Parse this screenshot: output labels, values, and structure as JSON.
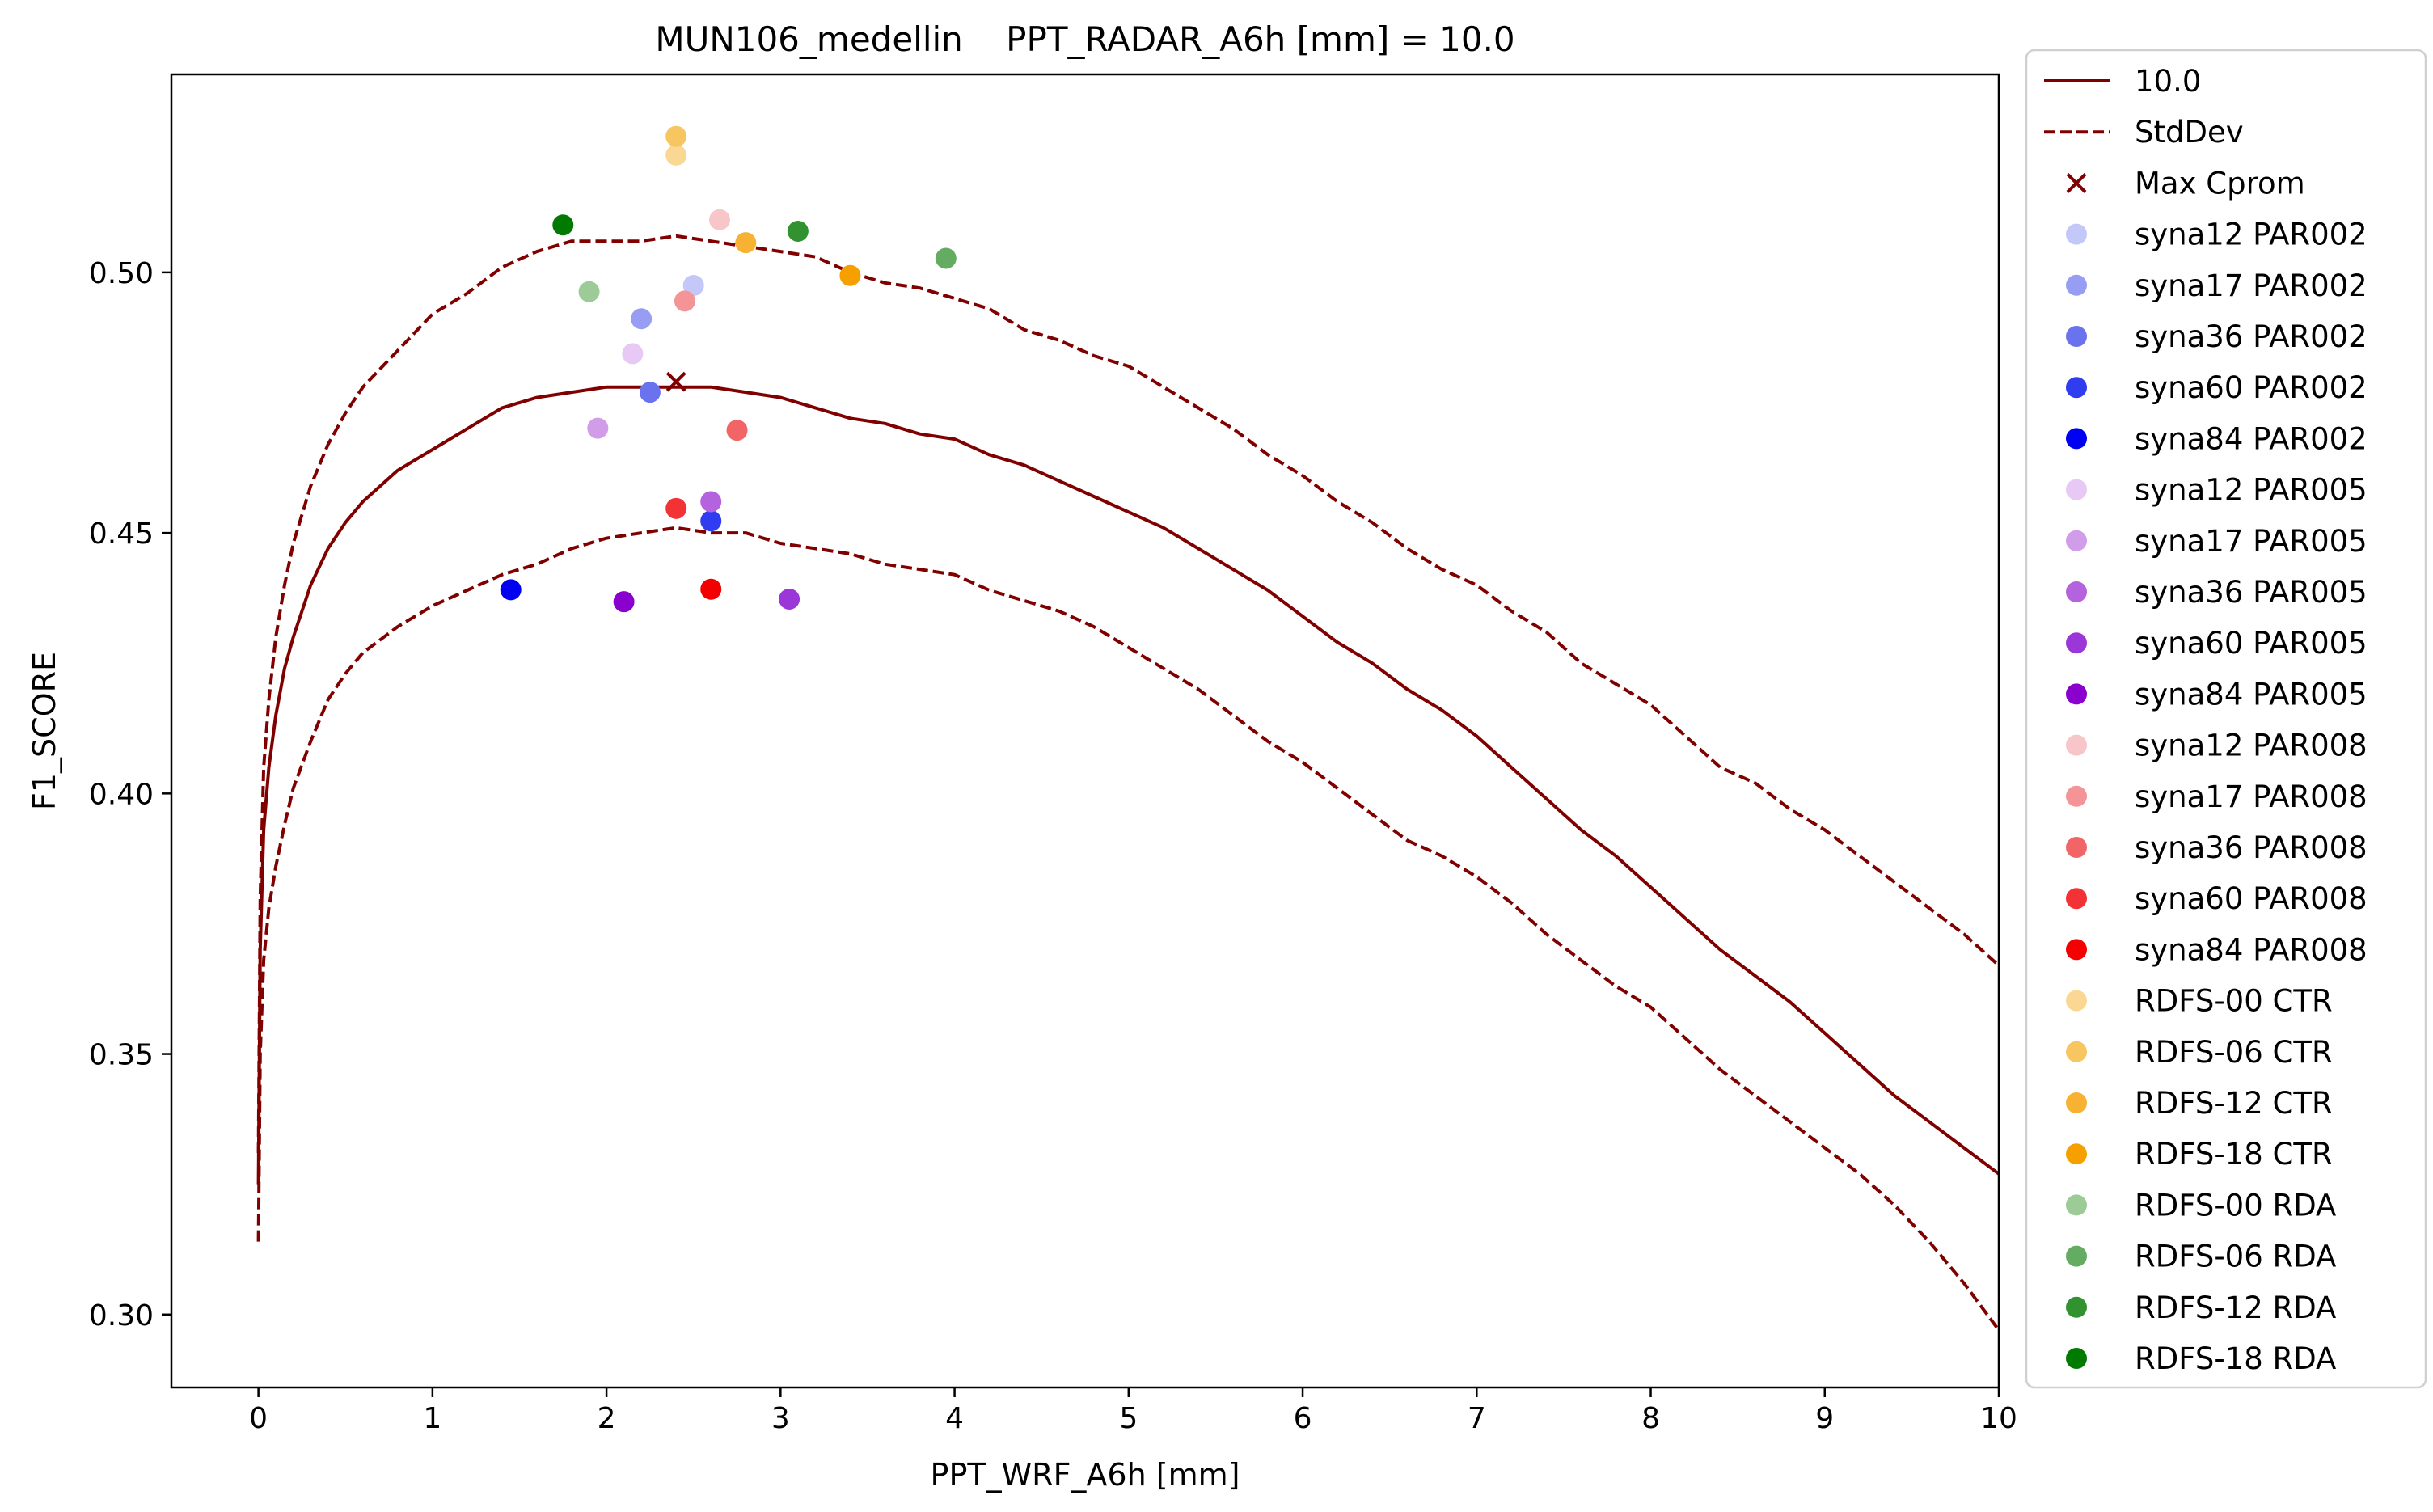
{
  "chart_data": {
    "type": "line",
    "title": "MUN106_medellin    PPT_RADAR_A6h [mm] = 10.0",
    "xlabel": "PPT_WRF_A6h [mm]",
    "ylabel": "F1_SCORE",
    "xlim": [
      -0.5,
      10
    ],
    "ylim": [
      0.286,
      0.538
    ],
    "x_ticks": [
      "0",
      "1",
      "2",
      "3",
      "4",
      "5",
      "6",
      "7",
      "8",
      "9",
      "10"
    ],
    "y_ticks": [
      "0.30",
      "0.35",
      "0.40",
      "0.45",
      "0.50"
    ],
    "legend_position": "outside right",
    "grid": false,
    "lines": {
      "mean": {
        "name": "10.0",
        "color": "#800000",
        "style": "solid",
        "x": [
          0,
          0.01,
          0.03,
          0.06,
          0.1,
          0.15,
          0.2,
          0.3,
          0.4,
          0.5,
          0.6,
          0.8,
          1.0,
          1.2,
          1.4,
          1.6,
          1.8,
          2.0,
          2.2,
          2.4,
          2.6,
          2.8,
          3.0,
          3.2,
          3.4,
          3.6,
          3.8,
          4.0,
          4.2,
          4.4,
          4.6,
          4.8,
          5.0,
          5.2,
          5.4,
          5.6,
          5.8,
          6.0,
          6.2,
          6.4,
          6.6,
          6.8,
          7.0,
          7.2,
          7.4,
          7.6,
          7.8,
          8.0,
          8.2,
          8.4,
          8.6,
          8.8,
          9.0,
          9.2,
          9.4,
          9.6,
          9.8,
          10.0
        ],
        "y": [
          0.325,
          0.37,
          0.393,
          0.405,
          0.415,
          0.424,
          0.43,
          0.44,
          0.447,
          0.452,
          0.456,
          0.462,
          0.466,
          0.47,
          0.474,
          0.476,
          0.477,
          0.478,
          0.478,
          0.478,
          0.478,
          0.477,
          0.476,
          0.474,
          0.472,
          0.471,
          0.469,
          0.468,
          0.465,
          0.463,
          0.46,
          0.457,
          0.454,
          0.451,
          0.447,
          0.443,
          0.439,
          0.434,
          0.429,
          0.425,
          0.42,
          0.416,
          0.411,
          0.405,
          0.399,
          0.393,
          0.388,
          0.382,
          0.376,
          0.37,
          0.365,
          0.36,
          0.354,
          0.348,
          0.342,
          0.337,
          0.332,
          0.327
        ]
      },
      "std_upper": {
        "name": "StdDev",
        "color": "#800000",
        "style": "dashed",
        "x": [
          0,
          0.01,
          0.03,
          0.06,
          0.1,
          0.15,
          0.2,
          0.3,
          0.4,
          0.5,
          0.6,
          0.8,
          1.0,
          1.2,
          1.4,
          1.6,
          1.8,
          2.0,
          2.2,
          2.4,
          2.6,
          2.8,
          3.0,
          3.2,
          3.4,
          3.6,
          3.8,
          4.0,
          4.2,
          4.4,
          4.6,
          4.8,
          5.0,
          5.2,
          5.4,
          5.6,
          5.8,
          6.0,
          6.2,
          6.4,
          6.6,
          6.8,
          7.0,
          7.2,
          7.4,
          7.6,
          7.8,
          8.0,
          8.2,
          8.4,
          8.6,
          8.8,
          9.0,
          9.2,
          9.4,
          9.6,
          9.8,
          10.0
        ],
        "y": [
          0.331,
          0.38,
          0.405,
          0.418,
          0.43,
          0.44,
          0.448,
          0.459,
          0.467,
          0.473,
          0.478,
          0.485,
          0.492,
          0.496,
          0.501,
          0.504,
          0.506,
          0.506,
          0.506,
          0.507,
          0.506,
          0.505,
          0.504,
          0.503,
          0.5,
          0.498,
          0.497,
          0.495,
          0.493,
          0.489,
          0.487,
          0.484,
          0.482,
          0.478,
          0.474,
          0.47,
          0.465,
          0.461,
          0.456,
          0.452,
          0.447,
          0.443,
          0.44,
          0.435,
          0.431,
          0.425,
          0.421,
          0.417,
          0.411,
          0.405,
          0.402,
          0.397,
          0.393,
          0.388,
          0.383,
          0.378,
          0.373,
          0.367
        ]
      },
      "std_lower": {
        "name": "StdDev",
        "color": "#800000",
        "style": "dashed",
        "x": [
          0,
          0.01,
          0.03,
          0.06,
          0.1,
          0.15,
          0.2,
          0.3,
          0.4,
          0.5,
          0.6,
          0.8,
          1.0,
          1.2,
          1.4,
          1.6,
          1.8,
          2.0,
          2.2,
          2.4,
          2.6,
          2.8,
          3.0,
          3.2,
          3.4,
          3.6,
          3.8,
          4.0,
          4.2,
          4.4,
          4.6,
          4.8,
          5.0,
          5.2,
          5.4,
          5.6,
          5.8,
          6.0,
          6.2,
          6.4,
          6.6,
          6.8,
          7.0,
          7.2,
          7.4,
          7.6,
          7.8,
          8.0,
          8.2,
          8.4,
          8.6,
          8.8,
          9.0,
          9.2,
          9.4,
          9.6,
          9.8,
          10.0
        ],
        "y": [
          0.314,
          0.35,
          0.368,
          0.378,
          0.386,
          0.394,
          0.401,
          0.41,
          0.418,
          0.423,
          0.427,
          0.432,
          0.436,
          0.439,
          0.442,
          0.444,
          0.447,
          0.449,
          0.45,
          0.451,
          0.45,
          0.45,
          0.448,
          0.447,
          0.446,
          0.444,
          0.443,
          0.442,
          0.439,
          0.437,
          0.435,
          0.432,
          0.428,
          0.424,
          0.42,
          0.415,
          0.41,
          0.406,
          0.401,
          0.396,
          0.391,
          0.388,
          0.384,
          0.379,
          0.373,
          0.368,
          0.363,
          0.359,
          0.353,
          0.347,
          0.342,
          0.337,
          0.332,
          0.327,
          0.321,
          0.314,
          0.306,
          0.297
        ]
      }
    },
    "max_marker": {
      "name": "Max Cprom",
      "x": 2.4,
      "y": 0.479,
      "color": "#800000",
      "marker": "x"
    },
    "series": [
      {
        "name": "syna12 PAR002",
        "color": "#c4c8f8",
        "x": 2.5,
        "y": 0.4975
      },
      {
        "name": "syna17 PAR002",
        "color": "#969df3",
        "x": 2.2,
        "y": 0.4911
      },
      {
        "name": "syna36 PAR002",
        "color": "#6a72ee",
        "x": 2.25,
        "y": 0.477
      },
      {
        "name": "syna60 PAR002",
        "color": "#2f3cf0",
        "x": 2.6,
        "y": 0.4523
      },
      {
        "name": "syna84 PAR002",
        "color": "#0000f2",
        "x": 1.45,
        "y": 0.4391
      },
      {
        "name": "syna12 PAR005",
        "color": "#e8c8f4",
        "x": 2.15,
        "y": 0.4844
      },
      {
        "name": "syna17 PAR005",
        "color": "#d29de8",
        "x": 1.95,
        "y": 0.4701
      },
      {
        "name": "syna36 PAR005",
        "color": "#b462dd",
        "x": 2.6,
        "y": 0.456
      },
      {
        "name": "syna60 PAR005",
        "color": "#9b36d8",
        "x": 3.05,
        "y": 0.4373
      },
      {
        "name": "syna84 PAR005",
        "color": "#8a00cf",
        "x": 2.1,
        "y": 0.4368
      },
      {
        "name": "syna12 PAR008",
        "color": "#f8c6c8",
        "x": 2.65,
        "y": 0.5101
      },
      {
        "name": "syna17 PAR008",
        "color": "#f59497",
        "x": 2.45,
        "y": 0.4945
      },
      {
        "name": "syna36 PAR008",
        "color": "#f26566",
        "x": 2.75,
        "y": 0.4697
      },
      {
        "name": "syna60 PAR008",
        "color": "#f23234",
        "x": 2.4,
        "y": 0.4547
      },
      {
        "name": "syna84 PAR008",
        "color": "#f50000",
        "x": 2.6,
        "y": 0.4392
      },
      {
        "name": "RDFS-00 CTR",
        "color": "#fad894",
        "x": 2.4,
        "y": 0.5225
      },
      {
        "name": "RDFS-06 CTR",
        "color": "#f8c660",
        "x": 2.4,
        "y": 0.5261
      },
      {
        "name": "RDFS-12 CTR",
        "color": "#f7b234",
        "x": 2.8,
        "y": 0.5057
      },
      {
        "name": "RDFS-18 CTR",
        "color": "#f6a000",
        "x": 3.4,
        "y": 0.4994
      },
      {
        "name": "RDFS-00 RDA",
        "color": "#9ccb98",
        "x": 1.9,
        "y": 0.4963
      },
      {
        "name": "RDFS-06 RDA",
        "color": "#63ac62",
        "x": 3.95,
        "y": 0.5027
      },
      {
        "name": "RDFS-12 RDA",
        "color": "#32922f",
        "x": 3.1,
        "y": 0.5079
      },
      {
        "name": "RDFS-18 RDA",
        "color": "#007a00",
        "x": 1.75,
        "y": 0.5091
      }
    ]
  }
}
